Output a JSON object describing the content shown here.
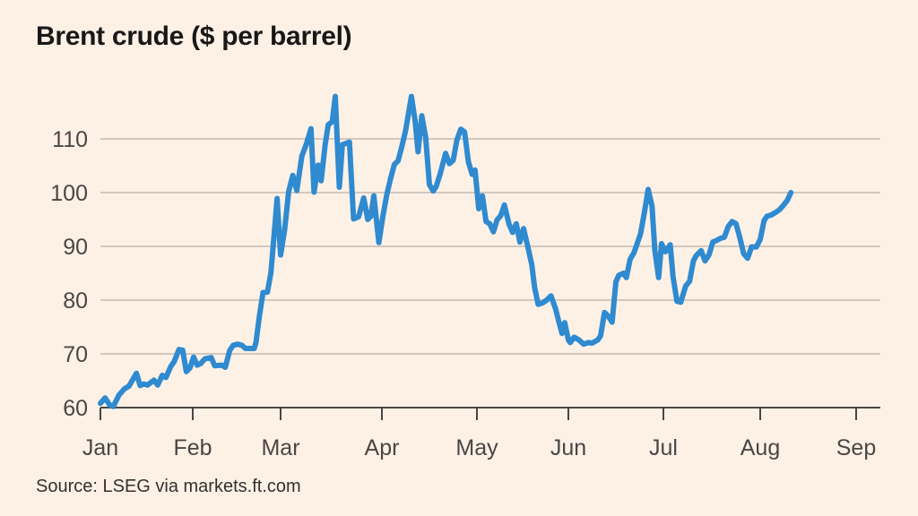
{
  "title": "Brent crude ($ per barrel)",
  "source": "Source: LSEG via markets.ft.com",
  "colors": {
    "background": "#fdf1e6",
    "line": "#2f8ad0",
    "grid": "#d3c8be",
    "axis": "#4a4643"
  },
  "chart_data": {
    "type": "line",
    "title": "Brent crude ($ per barrel)",
    "xlabel": "",
    "ylabel": "",
    "ylim": [
      60,
      118
    ],
    "y_ticks": [
      60,
      70,
      80,
      90,
      100,
      110
    ],
    "x_ticks": [
      "Jan",
      "Feb",
      "Mar",
      "Apr",
      "May",
      "Jun",
      "Jul",
      "Aug",
      "Sep"
    ],
    "grid": true,
    "series": [
      {
        "values": [
          [
            0,
            60.8
          ],
          [
            0.05,
            61.8
          ],
          [
            0.1,
            60.5
          ],
          [
            0.14,
            60.2
          ],
          [
            0.2,
            62.3
          ],
          [
            0.26,
            63.5
          ],
          [
            0.31,
            64
          ],
          [
            0.36,
            65.5
          ],
          [
            0.39,
            66.4
          ],
          [
            0.43,
            64.1
          ],
          [
            0.47,
            64.4
          ],
          [
            0.51,
            64.2
          ],
          [
            0.58,
            65.1
          ],
          [
            0.62,
            64.2
          ],
          [
            0.67,
            66
          ],
          [
            0.71,
            65.6
          ],
          [
            0.76,
            67.6
          ],
          [
            0.8,
            68.6
          ],
          [
            0.85,
            70.8
          ],
          [
            0.89,
            70.7
          ],
          [
            0.93,
            66.7
          ],
          [
            0.97,
            67.4
          ],
          [
            1.01,
            69.4
          ],
          [
            1.05,
            67.9
          ],
          [
            1.09,
            68.2
          ],
          [
            1.14,
            69.1
          ],
          [
            1.21,
            69.3
          ],
          [
            1.25,
            67.8
          ],
          [
            1.33,
            67.9
          ],
          [
            1.37,
            67.5
          ],
          [
            1.42,
            70.6
          ],
          [
            1.46,
            71.6
          ],
          [
            1.51,
            71.8
          ],
          [
            1.56,
            71.6
          ],
          [
            1.6,
            71
          ],
          [
            1.64,
            71
          ],
          [
            1.7,
            71
          ],
          [
            1.72,
            72.2
          ],
          [
            1.76,
            77.2
          ],
          [
            1.8,
            81.4
          ],
          [
            1.85,
            81.5
          ],
          [
            1.89,
            85.1
          ],
          [
            1.93,
            92.8
          ],
          [
            1.96,
            98.9
          ],
          [
            2.0,
            88.4
          ],
          [
            2.04,
            93.1
          ],
          [
            2.08,
            100.2
          ],
          [
            2.12,
            103.2
          ],
          [
            2.16,
            100.4
          ],
          [
            2.21,
            106.8
          ],
          [
            2.25,
            108.8
          ],
          [
            2.3,
            111.9
          ],
          [
            2.33,
            100.1
          ],
          [
            2.37,
            105.1
          ],
          [
            2.4,
            102.2
          ],
          [
            2.44,
            108.9
          ],
          [
            2.47,
            112.6
          ],
          [
            2.51,
            113.2
          ],
          [
            2.54,
            117.9
          ],
          [
            2.58,
            101
          ],
          [
            2.61,
            108.9
          ],
          [
            2.68,
            109.4
          ],
          [
            2.72,
            95.1
          ],
          [
            2.77,
            95.5
          ],
          [
            2.82,
            99
          ],
          [
            2.86,
            95
          ],
          [
            2.89,
            95.6
          ],
          [
            2.92,
            99.4
          ],
          [
            2.97,
            90.7
          ],
          [
            3.01,
            95.6
          ],
          [
            3.05,
            99.5
          ],
          [
            3.09,
            102.5
          ],
          [
            3.13,
            105.2
          ],
          [
            3.17,
            105.9
          ],
          [
            3.21,
            108.6
          ],
          [
            3.25,
            111.6
          ],
          [
            3.31,
            117.9
          ],
          [
            3.35,
            113.3
          ],
          [
            3.38,
            107.6
          ],
          [
            3.42,
            114.3
          ],
          [
            3.46,
            110.3
          ],
          [
            3.5,
            101.5
          ],
          [
            3.54,
            100.3
          ],
          [
            3.57,
            101.1
          ],
          [
            3.61,
            103.3
          ],
          [
            3.67,
            107.3
          ],
          [
            3.71,
            105.4
          ],
          [
            3.75,
            106
          ],
          [
            3.79,
            109.8
          ],
          [
            3.83,
            111.8
          ],
          [
            3.87,
            111.3
          ],
          [
            3.91,
            105.7
          ],
          [
            3.95,
            103.4
          ],
          [
            3.98,
            104.2
          ],
          [
            4.02,
            97
          ],
          [
            4.06,
            99.4
          ],
          [
            4.1,
            94.6
          ],
          [
            4.14,
            94.2
          ],
          [
            4.18,
            92.7
          ],
          [
            4.22,
            94.9
          ],
          [
            4.26,
            95.7
          ],
          [
            4.3,
            97.7
          ],
          [
            4.35,
            94.2
          ],
          [
            4.39,
            92.6
          ],
          [
            4.43,
            94.2
          ],
          [
            4.47,
            90.8
          ],
          [
            4.51,
            93.3
          ],
          [
            4.55,
            90.4
          ],
          [
            4.6,
            86.6
          ],
          [
            4.63,
            82.4
          ],
          [
            4.67,
            79.2
          ],
          [
            4.72,
            79.5
          ],
          [
            4.77,
            80.1
          ],
          [
            4.81,
            80.8
          ],
          [
            4.86,
            78.4
          ],
          [
            4.9,
            75.7
          ],
          [
            4.93,
            73.8
          ],
          [
            4.96,
            75.8
          ],
          [
            5.0,
            72.6
          ],
          [
            5.02,
            72.1
          ],
          [
            5.06,
            73.1
          ],
          [
            5.11,
            72.6
          ],
          [
            5.16,
            71.8
          ],
          [
            5.21,
            72.1
          ],
          [
            5.25,
            72
          ],
          [
            5.31,
            72.6
          ],
          [
            5.34,
            73.4
          ],
          [
            5.38,
            77.7
          ],
          [
            5.42,
            77
          ],
          [
            5.46,
            75.9
          ],
          [
            5.5,
            83.4
          ],
          [
            5.53,
            84.6
          ],
          [
            5.58,
            85
          ],
          [
            5.61,
            84.2
          ],
          [
            5.65,
            87.6
          ],
          [
            5.69,
            88.8
          ],
          [
            5.72,
            90.3
          ],
          [
            5.76,
            92.4
          ],
          [
            5.8,
            96.3
          ],
          [
            5.84,
            100.6
          ],
          [
            5.88,
            97.5
          ],
          [
            5.91,
            89.2
          ],
          [
            5.95,
            84.2
          ],
          [
            5.98,
            90.5
          ],
          [
            6.02,
            89
          ],
          [
            6.07,
            90.3
          ],
          [
            6.1,
            84.3
          ],
          [
            6.14,
            79.8
          ],
          [
            6.18,
            79.6
          ],
          [
            6.23,
            82.6
          ],
          [
            6.27,
            83.5
          ],
          [
            6.31,
            87.3
          ],
          [
            6.34,
            88.3
          ],
          [
            6.39,
            89.2
          ],
          [
            6.43,
            87.3
          ],
          [
            6.47,
            88.4
          ],
          [
            6.51,
            90.8
          ],
          [
            6.55,
            91.1
          ],
          [
            6.59,
            91.5
          ],
          [
            6.63,
            91.7
          ],
          [
            6.67,
            93.7
          ],
          [
            6.71,
            94.6
          ],
          [
            6.75,
            94.2
          ],
          [
            6.79,
            91.6
          ],
          [
            6.83,
            88.6
          ],
          [
            6.87,
            87.8
          ],
          [
            6.91,
            89.9
          ],
          [
            6.96,
            89.9
          ],
          [
            7.0,
            91.3
          ],
          [
            7.04,
            94.8
          ],
          [
            7.07,
            95.6
          ],
          [
            7.11,
            95.8
          ],
          [
            7.15,
            96.2
          ],
          [
            7.2,
            96.8
          ],
          [
            7.24,
            97.6
          ],
          [
            7.28,
            98.5
          ],
          [
            7.32,
            100
          ]
        ]
      }
    ]
  }
}
